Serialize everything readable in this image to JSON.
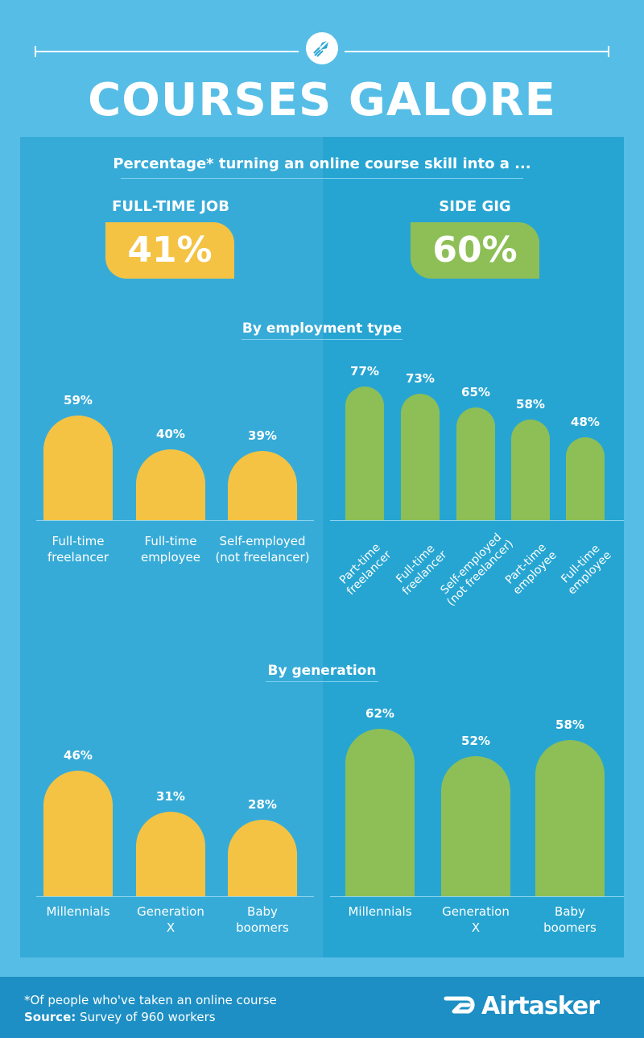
{
  "header": {
    "title": "COURSES GALORE",
    "subtitle": "Percentage* turning an online course skill into a ..."
  },
  "colors": {
    "background": "#56bde6",
    "full_time": "#f4c344",
    "side_gig": "#8dbf56"
  },
  "full_time": {
    "label": "FULL-TIME JOB",
    "value": "41%"
  },
  "side_gig": {
    "label": "SIDE GIG",
    "value": "60%"
  },
  "sections": {
    "employment": "By employment type",
    "generation": "By generation"
  },
  "chart_data": [
    {
      "type": "bar",
      "title": "By employment type",
      "series": [
        {
          "name": "FULL-TIME JOB",
          "color": "#f4c344"
        }
      ],
      "categories": [
        "Full-time freelancer",
        "Full-time employee",
        "Self-employed (not freelancer)"
      ],
      "label_lines": [
        [
          "Full-time",
          "freelancer"
        ],
        [
          "Full-time",
          "employee"
        ],
        [
          "Self-employed",
          "(not freelancer)"
        ]
      ],
      "values": [
        59,
        40,
        39
      ],
      "labels": [
        "59%",
        "40%",
        "39%"
      ]
    },
    {
      "type": "bar",
      "title": "By employment type",
      "series": [
        {
          "name": "SIDE GIG",
          "color": "#8dbf56"
        }
      ],
      "categories": [
        "Part-time freelancer",
        "Full-time freelancer",
        "Self-employed (not freelancer)",
        "Part-time employee",
        "Full-time employee"
      ],
      "label_lines": [
        [
          "Part-time",
          "freelancer"
        ],
        [
          "Full-time",
          "freelancer"
        ],
        [
          "Self-employed",
          "(not freelancer)"
        ],
        [
          "Part-time",
          "employee"
        ],
        [
          "Full-time",
          "employee"
        ]
      ],
      "values": [
        77,
        73,
        65,
        58,
        48
      ],
      "labels": [
        "77%",
        "73%",
        "65%",
        "58%",
        "48%"
      ]
    },
    {
      "type": "bar",
      "title": "By generation",
      "series": [
        {
          "name": "FULL-TIME JOB",
          "color": "#f4c344"
        }
      ],
      "categories": [
        "Millennials",
        "Generation X",
        "Baby boomers"
      ],
      "label_lines": [
        [
          "Millennials"
        ],
        [
          "Generation",
          "X"
        ],
        [
          "Baby",
          "boomers"
        ]
      ],
      "values": [
        46,
        31,
        28
      ],
      "labels": [
        "46%",
        "31%",
        "28%"
      ]
    },
    {
      "type": "bar",
      "title": "By generation",
      "series": [
        {
          "name": "SIDE GIG",
          "color": "#8dbf56"
        }
      ],
      "categories": [
        "Millennials",
        "Generation X",
        "Baby boomers"
      ],
      "label_lines": [
        [
          "Millennials"
        ],
        [
          "Generation",
          "X"
        ],
        [
          "Baby",
          "boomers"
        ]
      ],
      "values": [
        62,
        52,
        58
      ],
      "labels": [
        "62%",
        "52%",
        "58%"
      ]
    }
  ],
  "footer": {
    "footnote": "*Of people who've taken an online course",
    "source_label": "Source:",
    "source_text": " Survey of 960 workers",
    "brand": "Airtasker",
    "brand_icon": "airtasker-logo-icon",
    "header_icon": "rocket-icon"
  }
}
